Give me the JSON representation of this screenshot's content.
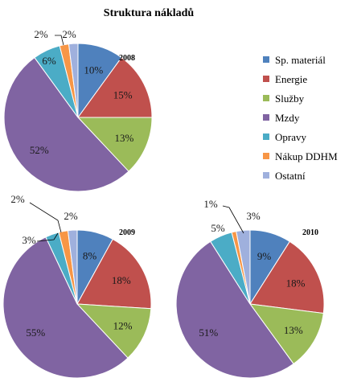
{
  "chart_data": {
    "type": "pie",
    "title": "Struktura nákladů",
    "legend_position": "right",
    "categories": [
      "Sp. materiál",
      "Energie",
      "Služby",
      "Mzdy",
      "Opravy",
      "Nákup DDHM",
      "Ostatní"
    ],
    "colors": [
      "#4f81bd",
      "#c0504d",
      "#9bbb59",
      "#8064a2",
      "#4bacc6",
      "#f79646",
      "#9fb0dd"
    ],
    "pies": [
      {
        "name": "2008",
        "values": [
          10,
          15,
          13,
          52,
          6,
          2,
          2
        ],
        "labels": [
          "10%",
          "15%",
          "13%",
          "52%",
          "6%",
          "2%",
          "2%"
        ]
      },
      {
        "name": "2009",
        "values": [
          8,
          18,
          12,
          55,
          3,
          2,
          2
        ],
        "labels": [
          "8%",
          "18%",
          "12%",
          "55%",
          "3%",
          "2%",
          "2%"
        ]
      },
      {
        "name": "2010",
        "values": [
          9,
          18,
          13,
          51,
          5,
          1,
          3
        ],
        "labels": [
          "9%",
          "18%",
          "13%",
          "51%",
          "5%",
          "1%",
          "3%"
        ]
      }
    ]
  }
}
